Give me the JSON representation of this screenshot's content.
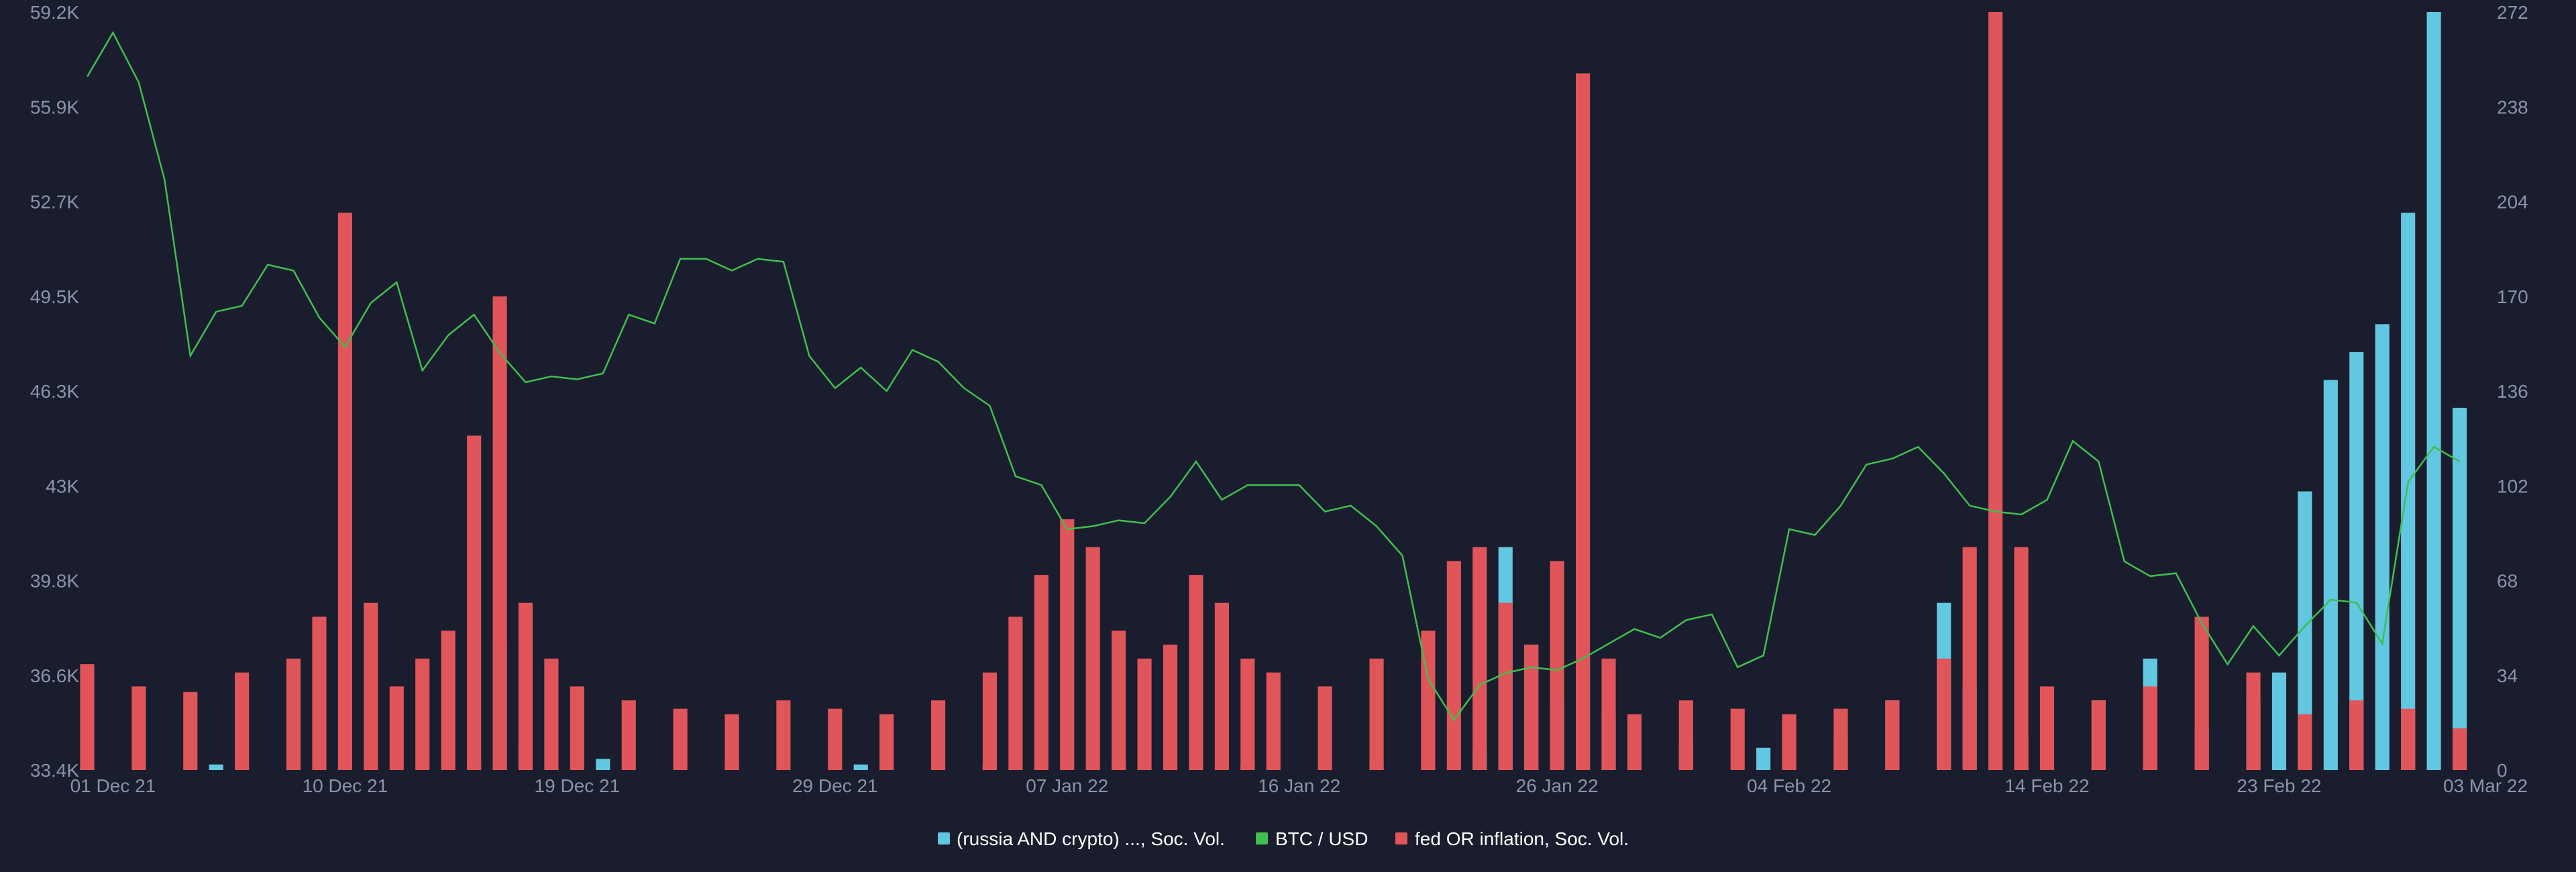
{
  "colors": {
    "background": "#1a1d2d",
    "btc": "#3fbf4f",
    "russia": "#62c7e0",
    "fed": "#e0555a",
    "ticks": "#8a93a8",
    "legend_text": "#ffffff"
  },
  "chart_data": {
    "type": "bar+line",
    "title": "",
    "grid": false,
    "legend_placement": "bottom-center",
    "x_range": [
      "2021-11-30",
      "2022-03-03"
    ],
    "x_ticks": [
      {
        "date": "2021-12-01",
        "label": "01 Dec 21"
      },
      {
        "date": "2021-12-10",
        "label": "10 Dec 21"
      },
      {
        "date": "2021-12-19",
        "label": "19 Dec 21"
      },
      {
        "date": "2021-12-29",
        "label": "29 Dec 21"
      },
      {
        "date": "2022-01-07",
        "label": "07 Jan 22"
      },
      {
        "date": "2022-01-16",
        "label": "16 Jan 22"
      },
      {
        "date": "2022-01-26",
        "label": "26 Jan 22"
      },
      {
        "date": "2022-02-04",
        "label": "04 Feb 22"
      },
      {
        "date": "2022-02-14",
        "label": "14 Feb 22"
      },
      {
        "date": "2022-02-23",
        "label": "23 Feb 22"
      },
      {
        "date": "2022-03-03",
        "label": "03 Mar 22"
      }
    ],
    "y_left": {
      "label": "",
      "range": [
        33400,
        59200
      ],
      "ticks": [
        "33.4K",
        "36.6K",
        "39.8K",
        "43K",
        "46.3K",
        "49.5K",
        "52.7K",
        "55.9K",
        "59.2K"
      ]
    },
    "y_right": {
      "label": "",
      "range": [
        0,
        272
      ],
      "ticks": [
        "0",
        "34",
        "68",
        "102",
        "136",
        "170",
        "204",
        "238",
        "272"
      ]
    },
    "series": [
      {
        "name": "(russia AND crypto) ..., Soc. Vol.",
        "kind": "bar",
        "axis": "right",
        "color": "#62c7e0",
        "points": [
          [
            "2021-11-30",
            1
          ],
          [
            "2021-12-05",
            2
          ],
          [
            "2021-12-10",
            1
          ],
          [
            "2021-12-15",
            3
          ],
          [
            "2021-12-16",
            45
          ],
          [
            "2021-12-17",
            10
          ],
          [
            "2021-12-20",
            4
          ],
          [
            "2021-12-25",
            2
          ],
          [
            "2021-12-30",
            2
          ],
          [
            "2022-01-04",
            2
          ],
          [
            "2022-01-09",
            2
          ],
          [
            "2022-01-14",
            2
          ],
          [
            "2022-01-19",
            3
          ],
          [
            "2022-01-23",
            8
          ],
          [
            "2022-01-24",
            80
          ],
          [
            "2022-01-25",
            45
          ],
          [
            "2022-01-26",
            25
          ],
          [
            "2022-01-27",
            40
          ],
          [
            "2022-01-28",
            20
          ],
          [
            "2022-01-31",
            10
          ],
          [
            "2022-02-03",
            8
          ],
          [
            "2022-02-06",
            12
          ],
          [
            "2022-02-08",
            25
          ],
          [
            "2022-02-10",
            60
          ],
          [
            "2022-02-11",
            30
          ],
          [
            "2022-02-13",
            12
          ],
          [
            "2022-02-16",
            25
          ],
          [
            "2022-02-18",
            40
          ],
          [
            "2022-02-20",
            15
          ],
          [
            "2022-02-22",
            25
          ],
          [
            "2022-02-23",
            35
          ],
          [
            "2022-02-24",
            100
          ],
          [
            "2022-02-25",
            140
          ],
          [
            "2022-02-26",
            150
          ],
          [
            "2022-02-27",
            160
          ],
          [
            "2022-02-28",
            200
          ],
          [
            "2022-03-01",
            272
          ],
          [
            "2022-03-02",
            130
          ]
        ]
      },
      {
        "name": "BTC / USD",
        "kind": "line",
        "axis": "left",
        "color": "#3fbf4f",
        "points": [
          [
            "2021-11-30",
            57000
          ],
          [
            "2021-12-01",
            58500
          ],
          [
            "2021-12-02",
            56800
          ],
          [
            "2021-12-03",
            53500
          ],
          [
            "2021-12-04",
            47500
          ],
          [
            "2021-12-05",
            49000
          ],
          [
            "2021-12-06",
            49200
          ],
          [
            "2021-12-07",
            50600
          ],
          [
            "2021-12-08",
            50400
          ],
          [
            "2021-12-09",
            48800
          ],
          [
            "2021-12-10",
            47800
          ],
          [
            "2021-12-11",
            49300
          ],
          [
            "2021-12-12",
            50000
          ],
          [
            "2021-12-13",
            47000
          ],
          [
            "2021-12-14",
            48200
          ],
          [
            "2021-12-15",
            48900
          ],
          [
            "2021-12-16",
            47600
          ],
          [
            "2021-12-17",
            46600
          ],
          [
            "2021-12-18",
            46800
          ],
          [
            "2021-12-19",
            46700
          ],
          [
            "2021-12-20",
            46900
          ],
          [
            "2021-12-21",
            48900
          ],
          [
            "2021-12-22",
            48600
          ],
          [
            "2021-12-23",
            50800
          ],
          [
            "2021-12-24",
            50800
          ],
          [
            "2021-12-25",
            50400
          ],
          [
            "2021-12-26",
            50800
          ],
          [
            "2021-12-27",
            50700
          ],
          [
            "2021-12-28",
            47500
          ],
          [
            "2021-12-29",
            46400
          ],
          [
            "2021-12-30",
            47100
          ],
          [
            "2021-12-31",
            46300
          ],
          [
            "2022-01-01",
            47700
          ],
          [
            "2022-01-02",
            47300
          ],
          [
            "2022-01-03",
            46400
          ],
          [
            "2022-01-04",
            45800
          ],
          [
            "2022-01-05",
            43400
          ],
          [
            "2022-01-06",
            43100
          ],
          [
            "2022-01-07",
            41600
          ],
          [
            "2022-01-08",
            41700
          ],
          [
            "2022-01-09",
            41900
          ],
          [
            "2022-01-10",
            41800
          ],
          [
            "2022-01-11",
            42700
          ],
          [
            "2022-01-12",
            43900
          ],
          [
            "2022-01-13",
            42600
          ],
          [
            "2022-01-14",
            43100
          ],
          [
            "2022-01-15",
            43100
          ],
          [
            "2022-01-16",
            43100
          ],
          [
            "2022-01-17",
            42200
          ],
          [
            "2022-01-18",
            42400
          ],
          [
            "2022-01-19",
            41700
          ],
          [
            "2022-01-20",
            40700
          ],
          [
            "2022-01-21",
            36500
          ],
          [
            "2022-01-22",
            35100
          ],
          [
            "2022-01-23",
            36300
          ],
          [
            "2022-01-24",
            36700
          ],
          [
            "2022-01-25",
            36900
          ],
          [
            "2022-01-26",
            36800
          ],
          [
            "2022-01-27",
            37200
          ],
          [
            "2022-01-28",
            37700
          ],
          [
            "2022-01-29",
            38200
          ],
          [
            "2022-01-30",
            37900
          ],
          [
            "2022-01-31",
            38500
          ],
          [
            "2022-02-01",
            38700
          ],
          [
            "2022-02-02",
            36900
          ],
          [
            "2022-02-03",
            37300
          ],
          [
            "2022-02-04",
            41600
          ],
          [
            "2022-02-05",
            41400
          ],
          [
            "2022-02-06",
            42400
          ],
          [
            "2022-02-07",
            43800
          ],
          [
            "2022-02-08",
            44000
          ],
          [
            "2022-02-09",
            44400
          ],
          [
            "2022-02-10",
            43500
          ],
          [
            "2022-02-11",
            42400
          ],
          [
            "2022-02-12",
            42200
          ],
          [
            "2022-02-13",
            42100
          ],
          [
            "2022-02-14",
            42600
          ],
          [
            "2022-02-15",
            44600
          ],
          [
            "2022-02-16",
            43900
          ],
          [
            "2022-02-17",
            40500
          ],
          [
            "2022-02-18",
            40000
          ],
          [
            "2022-02-19",
            40100
          ],
          [
            "2022-02-20",
            38400
          ],
          [
            "2022-02-21",
            37000
          ],
          [
            "2022-02-22",
            38300
          ],
          [
            "2022-02-23",
            37300
          ],
          [
            "2022-02-24",
            38300
          ],
          [
            "2022-02-25",
            39200
          ],
          [
            "2022-02-26",
            39100
          ],
          [
            "2022-02-27",
            37700
          ],
          [
            "2022-02-28",
            43200
          ],
          [
            "2022-03-01",
            44400
          ],
          [
            "2022-03-02",
            43900
          ]
        ]
      },
      {
        "name": "fed OR inflation, Soc. Vol.",
        "kind": "bar",
        "axis": "right",
        "color": "#e0555a",
        "points": [
          [
            "2021-11-30",
            38
          ],
          [
            "2021-12-02",
            30
          ],
          [
            "2021-12-04",
            28
          ],
          [
            "2021-12-06",
            35
          ],
          [
            "2021-12-08",
            40
          ],
          [
            "2021-12-09",
            55
          ],
          [
            "2021-12-10",
            200
          ],
          [
            "2021-12-11",
            60
          ],
          [
            "2021-12-12",
            30
          ],
          [
            "2021-12-13",
            40
          ],
          [
            "2021-12-14",
            50
          ],
          [
            "2021-12-15",
            120
          ],
          [
            "2021-12-16",
            170
          ],
          [
            "2021-12-17",
            60
          ],
          [
            "2021-12-18",
            40
          ],
          [
            "2021-12-19",
            30
          ],
          [
            "2021-12-21",
            25
          ],
          [
            "2021-12-23",
            22
          ],
          [
            "2021-12-25",
            20
          ],
          [
            "2021-12-27",
            25
          ],
          [
            "2021-12-29",
            22
          ],
          [
            "2021-12-31",
            20
          ],
          [
            "2022-01-02",
            25
          ],
          [
            "2022-01-04",
            35
          ],
          [
            "2022-01-05",
            55
          ],
          [
            "2022-01-06",
            70
          ],
          [
            "2022-01-07",
            90
          ],
          [
            "2022-01-08",
            80
          ],
          [
            "2022-01-09",
            50
          ],
          [
            "2022-01-10",
            40
          ],
          [
            "2022-01-11",
            45
          ],
          [
            "2022-01-12",
            70
          ],
          [
            "2022-01-13",
            60
          ],
          [
            "2022-01-14",
            40
          ],
          [
            "2022-01-15",
            35
          ],
          [
            "2022-01-17",
            30
          ],
          [
            "2022-01-19",
            40
          ],
          [
            "2022-01-21",
            50
          ],
          [
            "2022-01-22",
            75
          ],
          [
            "2022-01-23",
            80
          ],
          [
            "2022-01-24",
            60
          ],
          [
            "2022-01-25",
            45
          ],
          [
            "2022-01-26",
            75
          ],
          [
            "2022-01-27",
            250
          ],
          [
            "2022-01-28",
            40
          ],
          [
            "2022-01-29",
            20
          ],
          [
            "2022-01-31",
            25
          ],
          [
            "2022-02-02",
            22
          ],
          [
            "2022-02-04",
            20
          ],
          [
            "2022-02-06",
            22
          ],
          [
            "2022-02-08",
            25
          ],
          [
            "2022-02-10",
            40
          ],
          [
            "2022-02-11",
            80
          ],
          [
            "2022-02-12",
            272
          ],
          [
            "2022-02-13",
            80
          ],
          [
            "2022-02-14",
            30
          ],
          [
            "2022-02-16",
            25
          ],
          [
            "2022-02-18",
            30
          ],
          [
            "2022-02-20",
            55
          ],
          [
            "2022-02-22",
            35
          ],
          [
            "2022-02-24",
            20
          ],
          [
            "2022-02-26",
            25
          ],
          [
            "2022-02-28",
            22
          ],
          [
            "2022-03-02",
            15
          ]
        ]
      }
    ]
  }
}
